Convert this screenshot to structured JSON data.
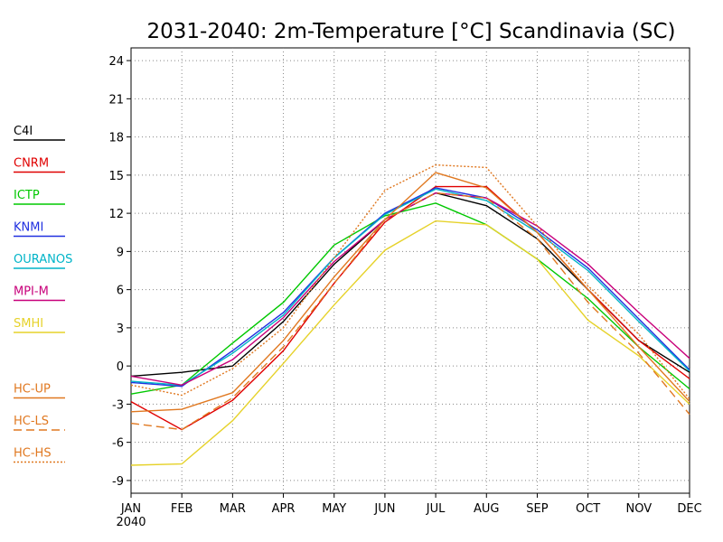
{
  "chart_data": {
    "type": "line",
    "title": "2031-2040: 2m-Temperature [°C] Scandinavia (SC)",
    "categories": [
      "JAN",
      "FEB",
      "MAR",
      "APR",
      "MAY",
      "JUN",
      "JUL",
      "AUG",
      "SEP",
      "OCT",
      "NOV",
      "DEC"
    ],
    "x_sublabel": "2040",
    "ylim": [
      -10,
      25
    ],
    "yticks": [
      -9,
      -6,
      -3,
      0,
      3,
      6,
      9,
      12,
      15,
      18,
      21,
      24
    ],
    "grid": true,
    "legend": "left",
    "series": [
      {
        "name": "C4I",
        "color": "#000000",
        "dash": "solid",
        "values": [
          -0.8,
          -0.5,
          0,
          3.5,
          8,
          11.5,
          13.6,
          12.6,
          10,
          6,
          2,
          -0.5
        ]
      },
      {
        "name": "CNRM",
        "color": "#e00000",
        "dash": "solid",
        "values": [
          -2.8,
          -5,
          -2.7,
          1.2,
          6.5,
          11.3,
          14.1,
          14.1,
          10.5,
          6,
          2,
          -1
        ]
      },
      {
        "name": "ICTP",
        "color": "#00c800",
        "dash": "solid",
        "values": [
          -2.2,
          -1.5,
          1.8,
          5,
          9.5,
          11.8,
          12.8,
          11.1,
          8.4,
          5.3,
          1.5,
          -1.8
        ]
      },
      {
        "name": "KNMI",
        "color": "#2030e0",
        "dash": "solid",
        "values": [
          -1.3,
          -1.6,
          1.2,
          4.2,
          8.5,
          12,
          14,
          13.2,
          10.7,
          7.7,
          3.7,
          -0.3
        ]
      },
      {
        "name": "OURANOS",
        "color": "#00b4c8",
        "dash": "solid",
        "values": [
          -1.2,
          -1.5,
          1,
          4,
          8.5,
          11.9,
          13.9,
          13,
          10.5,
          7.5,
          3.5,
          -0.4
        ]
      },
      {
        "name": "MPI-M",
        "color": "#c8007a",
        "dash": "solid",
        "values": [
          -0.8,
          -1.5,
          0.5,
          3.8,
          8.2,
          11.5,
          13.6,
          13.2,
          11,
          8,
          4.2,
          0.6
        ]
      },
      {
        "name": "SMHI",
        "color": "#e6d22a",
        "dash": "solid",
        "values": [
          -7.8,
          -7.7,
          -4.3,
          0.2,
          4.8,
          9.1,
          11.4,
          11.1,
          8.4,
          3.6,
          0.8,
          -3
        ]
      },
      {
        "name": "HC-UP",
        "color": "#e07820",
        "dash": "solid",
        "values": [
          -3.6,
          -3.4,
          -2.1,
          2,
          7,
          11.5,
          15.2,
          14,
          10.5,
          6,
          1.5,
          -2.8
        ]
      },
      {
        "name": "HC-LS",
        "color": "#e07820",
        "dash": "dashed",
        "values": [
          -4.5,
          -5,
          -2.5,
          1.5,
          6.5,
          11.5,
          13.6,
          13.2,
          10,
          5,
          1,
          -3.8
        ]
      },
      {
        "name": "HC-HS",
        "color": "#e07820",
        "dash": "dotted",
        "values": [
          -1.5,
          -2.3,
          -0.2,
          3,
          8.5,
          13.8,
          15.8,
          15.6,
          11,
          6.3,
          2.5,
          -2.6
        ]
      }
    ]
  }
}
